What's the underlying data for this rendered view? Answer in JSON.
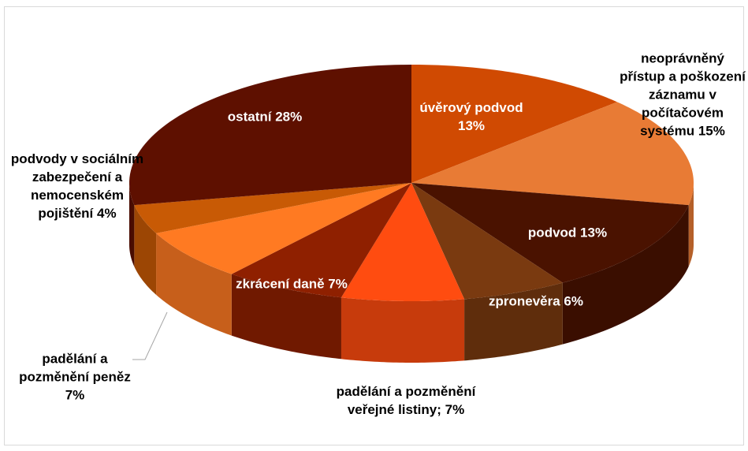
{
  "chart_data": {
    "type": "pie3d",
    "categories": [
      "úvěrový podvod",
      "neoprávněný přístup a poškození záznamu v počítačovém systému",
      "podvod",
      "zpronevěra",
      "padělání a pozměnění veřejné listiny;",
      "zkrácení daně",
      "padělání a pozměnění peněz",
      "podvody v sociálním zabezpečení a nemocenském pojištění",
      "ostatní"
    ],
    "values": [
      13,
      15,
      13,
      6,
      7,
      7,
      7,
      4,
      28
    ],
    "value_labels": [
      "13%",
      "15%",
      "13%",
      "6%",
      "7%",
      "7%",
      "7%",
      "4%",
      "28%"
    ],
    "colors": [
      "#d04a02",
      "#e87b35",
      "#4a1200",
      "#7a3a10",
      "#ff4c10",
      "#8f2000",
      "#ff7a22",
      "#c85a05",
      "#5e1000"
    ]
  }
}
